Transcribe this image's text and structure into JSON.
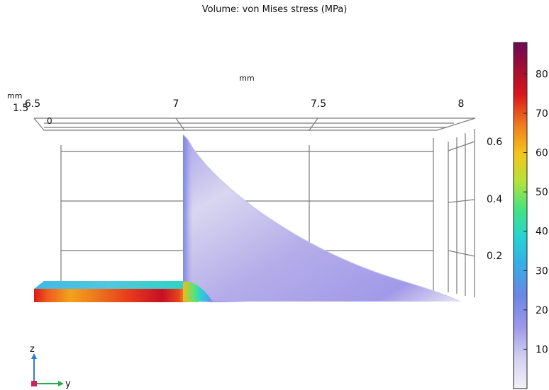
{
  "chart_data": {
    "type": "heatmap",
    "title": "Volume: von Mises stress (MPa)",
    "colormap": "rainbow",
    "colormap_stops": [
      "#ecebf5",
      "#b9b3e6",
      "#8a8ae8",
      "#5a8ee0",
      "#2fb2e8",
      "#27d3cf",
      "#3ee38a",
      "#b9e23a",
      "#f2c019",
      "#f07a1c",
      "#d3141a",
      "#9c0e33",
      "#6e0c57"
    ],
    "colorbar": {
      "min": 0,
      "max": 88,
      "ticks": [
        "10",
        "20",
        "30",
        "40",
        "50",
        "60",
        "70",
        "80"
      ]
    },
    "x_axis": {
      "unit": "mm",
      "ticks": [
        "6.5",
        "7",
        "7.5",
        "8"
      ]
    },
    "y_axis": {
      "ticks": [
        "0.2",
        "0.4",
        "0.6"
      ]
    },
    "depth_axis": {
      "unit": "mm",
      "ticks": [
        "1.5",
        "0"
      ]
    },
    "triad": {
      "z": "z",
      "y": "y"
    }
  }
}
